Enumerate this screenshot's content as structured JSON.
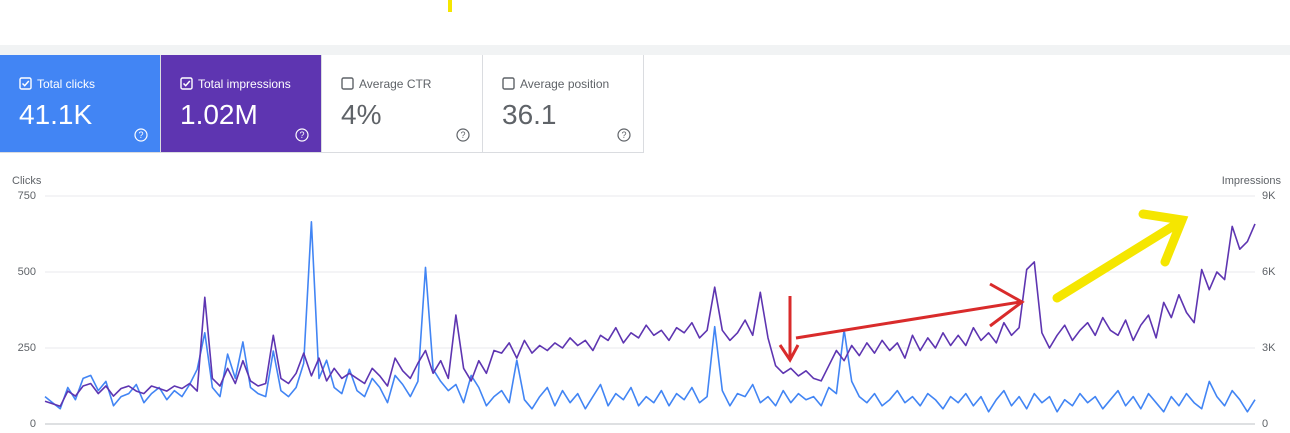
{
  "metrics": [
    {
      "label": "Total clicks",
      "value": "41.1K",
      "selected": true,
      "color": "#4285f4"
    },
    {
      "label": "Total impressions",
      "value": "1.02M",
      "selected": true,
      "color": "#5e35b1"
    },
    {
      "label": "Average CTR",
      "value": "4%",
      "selected": false,
      "color": "#ffffff"
    },
    {
      "label": "Average position",
      "value": "36.1",
      "selected": false,
      "color": "#ffffff"
    }
  ],
  "chart_data": {
    "type": "line",
    "y_label": "Clicks",
    "y2_label": "Impressions",
    "ylim": [
      0,
      750
    ],
    "yticks": [
      0,
      250,
      500,
      750
    ],
    "y2lim": [
      0,
      9000
    ],
    "y2ticks": [
      0,
      {
        "value": 3000,
        "label": "3K"
      },
      {
        "value": 6000,
        "label": "6K"
      },
      {
        "value": 9000,
        "label": "9K"
      }
    ],
    "grid": true,
    "series": [
      {
        "name": "Clicks",
        "color": "#4285f4",
        "values": [
          90,
          70,
          50,
          120,
          80,
          150,
          160,
          110,
          140,
          60,
          90,
          100,
          130,
          70,
          100,
          120,
          80,
          110,
          90,
          130,
          180,
          300,
          120,
          90,
          230,
          150,
          270,
          120,
          100,
          90,
          240,
          110,
          90,
          120,
          200,
          665,
          150,
          210,
          120,
          100,
          180,
          110,
          90,
          150,
          120,
          70,
          160,
          130,
          90,
          140,
          515,
          180,
          140,
          110,
          130,
          70,
          160,
          120,
          60,
          90,
          110,
          70,
          210,
          80,
          50,
          90,
          120,
          60,
          110,
          70,
          100,
          50,
          90,
          130,
          60,
          100,
          80,
          120,
          60,
          90,
          70,
          110,
          60,
          100,
          80,
          120,
          70,
          90,
          320,
          110,
          60,
          100,
          90,
          130,
          70,
          90,
          60,
          110,
          70,
          100,
          80,
          90,
          60,
          120,
          100,
          310,
          140,
          90,
          70,
          100,
          60,
          80,
          110,
          70,
          90,
          60,
          100,
          80,
          50,
          90,
          70,
          100,
          60,
          90,
          40,
          80,
          110,
          60,
          90,
          50,
          100,
          70,
          90,
          40,
          80,
          60,
          100,
          70,
          90,
          50,
          80,
          110,
          60,
          90,
          50,
          100,
          70,
          40,
          90,
          60,
          100,
          70,
          50,
          140,
          90,
          60,
          110,
          80,
          40,
          80
        ]
      },
      {
        "name": "Impressions",
        "color": "#5e35b1",
        "axis": "y2",
        "values": [
          900,
          800,
          700,
          1300,
          1100,
          1500,
          1600,
          1200,
          1500,
          1100,
          1400,
          1500,
          1300,
          1200,
          1500,
          1400,
          1300,
          1500,
          1400,
          1600,
          1300,
          5000,
          1800,
          1500,
          2200,
          1600,
          2500,
          1700,
          1500,
          1600,
          3500,
          1800,
          1600,
          2000,
          2800,
          1900,
          2600,
          1700,
          2200,
          1800,
          2000,
          1800,
          1600,
          2200,
          1900,
          1500,
          2600,
          2100,
          1800,
          2400,
          2900,
          2000,
          2500,
          1800,
          4300,
          2200,
          1700,
          2500,
          2000,
          2900,
          2800,
          3200,
          2600,
          3300,
          2800,
          3100,
          2900,
          3200,
          3000,
          3400,
          3100,
          3300,
          2900,
          3500,
          3300,
          3800,
          3200,
          3600,
          3400,
          3900,
          3500,
          3700,
          3300,
          3800,
          3600,
          4000,
          3400,
          3700,
          5400,
          3700,
          3300,
          3600,
          4100,
          3500,
          5200,
          3400,
          2300,
          2000,
          2200,
          1900,
          2100,
          1800,
          1700,
          2300,
          2900,
          2500,
          3100,
          2700,
          3200,
          2800,
          3300,
          2900,
          3200,
          2600,
          3500,
          2900,
          3400,
          3000,
          3600,
          3100,
          3500,
          3100,
          3800,
          3300,
          3600,
          3200,
          4000,
          3500,
          3800,
          6100,
          6400,
          3600,
          3000,
          3500,
          3900,
          3300,
          3700,
          4000,
          3500,
          4200,
          3700,
          3500,
          4100,
          3300,
          3900,
          4300,
          3400,
          4800,
          4200,
          5100,
          4400,
          4000,
          6100,
          5300,
          6000,
          5700,
          7800,
          6900,
          7200,
          7900
        ]
      }
    ]
  }
}
